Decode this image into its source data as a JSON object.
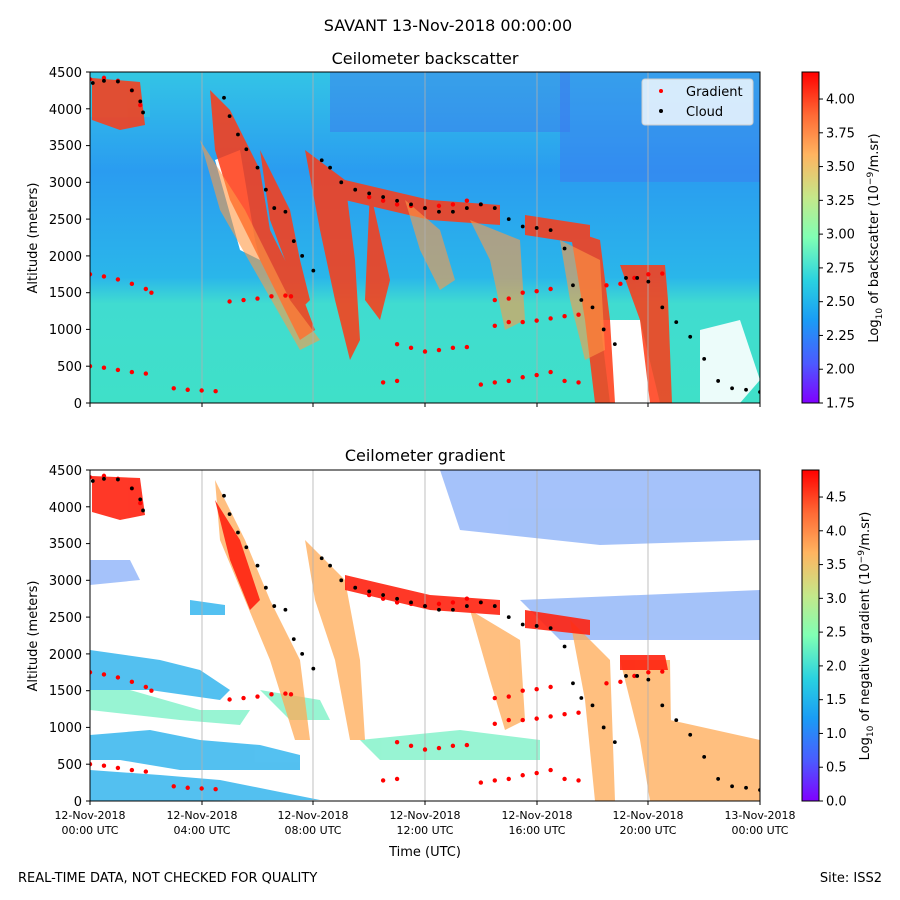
{
  "figure": {
    "suptitle": "SAVANT 13-Nov-2018 00:00:00",
    "footer_left": "REAL-TIME DATA, NOT CHECKED FOR QUALITY",
    "footer_right": "Site: ISS2"
  },
  "chart_data": [
    {
      "type": "heatmap",
      "title": "Ceilometer backscatter",
      "ylabel": "Altitude (meters)",
      "xlabel": "",
      "x_ticks": [
        "",
        "",
        "",
        "",
        "",
        "",
        ""
      ],
      "y_ticks": [
        "0",
        "500",
        "1000",
        "1500",
        "2000",
        "2500",
        "3000",
        "3500",
        "4000",
        "4500"
      ],
      "ylim": [
        0,
        4500
      ],
      "xlim_hours": [
        0,
        24
      ],
      "colorbar": {
        "label_parts": [
          "Log",
          "10",
          " of backscatter (10",
          "−9",
          "/m.sr)"
        ],
        "range": [
          1.75,
          4.2
        ],
        "ticks": [
          "1.75",
          "2.00",
          "2.25",
          "2.50",
          "2.75",
          "3.00",
          "3.25",
          "3.50",
          "3.75",
          "4.00"
        ],
        "tick_values": [
          1.75,
          2.0,
          2.25,
          2.5,
          2.75,
          3.0,
          3.25,
          3.5,
          3.75,
          4.0
        ],
        "colormap": "rainbow"
      },
      "legend": {
        "placement": "upper right",
        "entries": [
          {
            "label": "Gradient",
            "color": "#ff0000"
          },
          {
            "label": "Cloud",
            "color": "#000000"
          }
        ]
      },
      "grid": "vertical lines at 4-hour ticks"
    },
    {
      "type": "heatmap",
      "title": "Ceilometer gradient",
      "ylabel": "Altitude (meters)",
      "xlabel": "Time (UTC)",
      "x_ticks": [
        [
          "12-Nov-2018",
          "00:00 UTC"
        ],
        [
          "12-Nov-2018",
          "04:00 UTC"
        ],
        [
          "12-Nov-2018",
          "08:00 UTC"
        ],
        [
          "12-Nov-2018",
          "12:00 UTC"
        ],
        [
          "12-Nov-2018",
          "16:00 UTC"
        ],
        [
          "12-Nov-2018",
          "20:00 UTC"
        ],
        [
          "13-Nov-2018",
          "00:00 UTC"
        ]
      ],
      "y_ticks": [
        "0",
        "500",
        "1000",
        "1500",
        "2000",
        "2500",
        "3000",
        "3500",
        "4000",
        "4500"
      ],
      "ylim": [
        0,
        4500
      ],
      "xlim_hours": [
        0,
        24
      ],
      "colorbar": {
        "label_parts": [
          "Log",
          "10",
          " of negative gradient (10",
          "−9",
          "/m.sr)"
        ],
        "range": [
          0.0,
          4.9
        ],
        "ticks": [
          "0.0",
          "0.5",
          "1.0",
          "1.5",
          "2.0",
          "2.5",
          "3.0",
          "3.5",
          "4.0",
          "4.5"
        ],
        "tick_values": [
          0.0,
          0.5,
          1.0,
          1.5,
          2.0,
          2.5,
          3.0,
          3.5,
          4.0,
          4.5
        ],
        "colormap": "rainbow"
      },
      "grid": "vertical lines at 4-hour ticks"
    }
  ],
  "traces": {
    "cloud": [
      [
        0.1,
        4350
      ],
      [
        0.5,
        4380
      ],
      [
        1.0,
        4370
      ],
      [
        1.5,
        4250
      ],
      [
        1.8,
        4100
      ],
      [
        1.9,
        3950
      ],
      [
        4.8,
        4150
      ],
      [
        5.0,
        3900
      ],
      [
        5.3,
        3650
      ],
      [
        5.6,
        3450
      ],
      [
        6.0,
        3200
      ],
      [
        6.3,
        2900
      ],
      [
        6.6,
        2650
      ],
      [
        7.0,
        2600
      ],
      [
        7.3,
        2200
      ],
      [
        7.6,
        2000
      ],
      [
        8.0,
        1800
      ],
      [
        8.3,
        3300
      ],
      [
        8.6,
        3200
      ],
      [
        9.0,
        3000
      ],
      [
        9.5,
        2900
      ],
      [
        10.0,
        2850
      ],
      [
        10.5,
        2800
      ],
      [
        11.0,
        2750
      ],
      [
        11.5,
        2700
      ],
      [
        12.0,
        2650
      ],
      [
        12.5,
        2600
      ],
      [
        13.0,
        2600
      ],
      [
        13.5,
        2650
      ],
      [
        14.0,
        2700
      ],
      [
        14.5,
        2650
      ],
      [
        15.0,
        2500
      ],
      [
        15.5,
        2400
      ],
      [
        16.0,
        2380
      ],
      [
        16.5,
        2350
      ],
      [
        17.0,
        2100
      ],
      [
        17.3,
        1600
      ],
      [
        17.6,
        1400
      ],
      [
        18.0,
        1300
      ],
      [
        18.4,
        1000
      ],
      [
        18.8,
        800
      ],
      [
        19.2,
        1700
      ],
      [
        19.6,
        1700
      ],
      [
        20.0,
        1650
      ],
      [
        20.5,
        1300
      ],
      [
        21.0,
        1100
      ],
      [
        21.5,
        900
      ],
      [
        22.0,
        600
      ],
      [
        22.5,
        300
      ],
      [
        23.0,
        200
      ],
      [
        23.5,
        180
      ],
      [
        24.0,
        150
      ]
    ],
    "gradient": [
      [
        0.0,
        1750
      ],
      [
        0.5,
        1720
      ],
      [
        1.0,
        1680
      ],
      [
        1.5,
        1620
      ],
      [
        2.0,
        1550
      ],
      [
        2.2,
        1500
      ],
      [
        0.0,
        4400
      ],
      [
        0.5,
        4420
      ],
      [
        1.0,
        4380
      ],
      [
        1.5,
        4250
      ],
      [
        1.8,
        4050
      ],
      [
        5.0,
        1380
      ],
      [
        5.5,
        1400
      ],
      [
        6.0,
        1420
      ],
      [
        6.5,
        1450
      ],
      [
        7.0,
        1460
      ],
      [
        7.2,
        1450
      ],
      [
        11.0,
        800
      ],
      [
        11.5,
        750
      ],
      [
        12.0,
        700
      ],
      [
        12.5,
        720
      ],
      [
        13.0,
        750
      ],
      [
        13.5,
        760
      ],
      [
        14.5,
        1400
      ],
      [
        15.0,
        1420
      ],
      [
        15.5,
        1500
      ],
      [
        16.0,
        1520
      ],
      [
        16.5,
        1550
      ],
      [
        14.5,
        1050
      ],
      [
        15.0,
        1100
      ],
      [
        15.5,
        1100
      ],
      [
        16.0,
        1120
      ],
      [
        16.5,
        1150
      ],
      [
        17.0,
        1180
      ],
      [
        17.5,
        1200
      ],
      [
        10.0,
        2800
      ],
      [
        10.5,
        2750
      ],
      [
        11.0,
        2700
      ],
      [
        11.5,
        2680
      ],
      [
        12.0,
        2650
      ],
      [
        12.5,
        2680
      ],
      [
        13.0,
        2700
      ],
      [
        13.5,
        2750
      ],
      [
        14.0,
        2700
      ],
      [
        18.5,
        1600
      ],
      [
        19.0,
        1620
      ],
      [
        19.5,
        1700
      ],
      [
        20.0,
        1750
      ],
      [
        20.5,
        1760
      ],
      [
        0.0,
        500
      ],
      [
        0.5,
        480
      ],
      [
        1.0,
        450
      ],
      [
        1.5,
        420
      ],
      [
        2.0,
        400
      ],
      [
        3.0,
        200
      ],
      [
        3.5,
        180
      ],
      [
        4.0,
        170
      ],
      [
        4.5,
        160
      ],
      [
        10.5,
        280
      ],
      [
        11.0,
        300
      ],
      [
        14.0,
        250
      ],
      [
        14.5,
        280
      ],
      [
        15.0,
        300
      ],
      [
        15.5,
        350
      ],
      [
        16.0,
        380
      ],
      [
        16.5,
        420
      ],
      [
        17.0,
        300
      ],
      [
        17.5,
        280
      ]
    ]
  }
}
